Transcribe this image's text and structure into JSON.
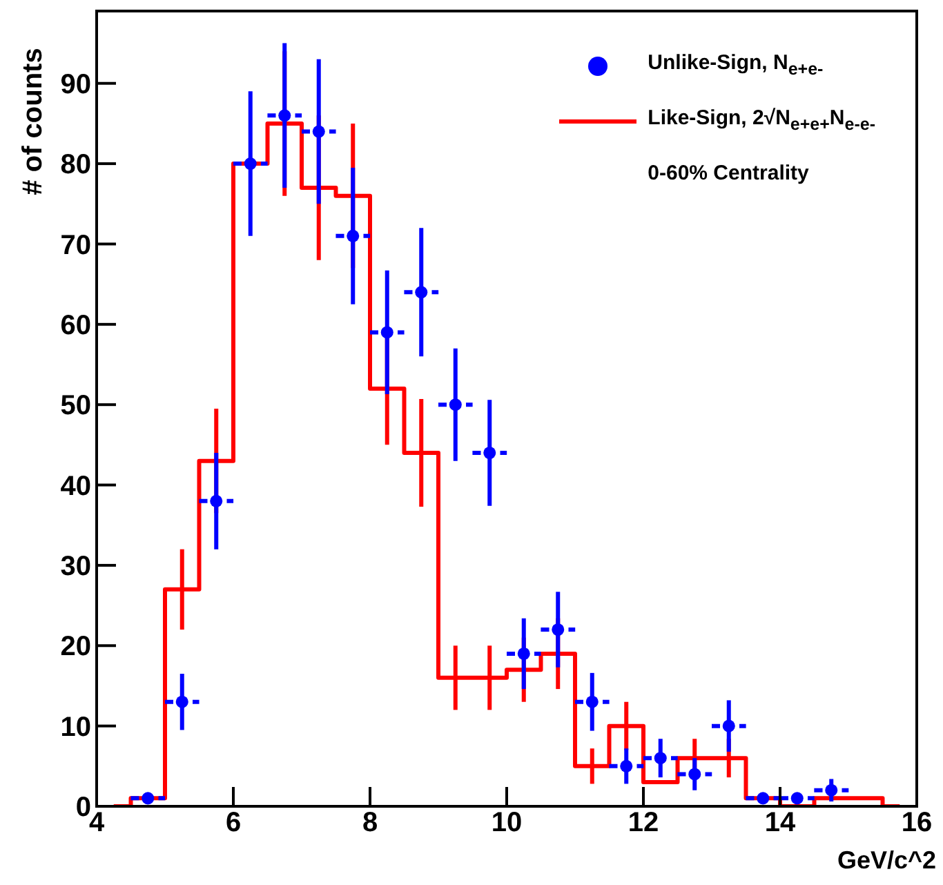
{
  "chart_data": {
    "type": "step",
    "xlabel": "GeV/c^2",
    "ylabel": "# of counts",
    "xlim": [
      4,
      16
    ],
    "xticks": [
      4,
      6,
      8,
      10,
      12,
      14,
      16
    ],
    "ylim": [
      0,
      99
    ],
    "yticks": [
      0,
      10,
      20,
      30,
      40,
      50,
      60,
      70,
      80,
      90
    ],
    "grid": false,
    "legend": "top right",
    "annotations": [
      "0-60% Centrality"
    ],
    "series": [
      {
        "name": "Unlike-Sign, N$_{e+e-}$",
        "type": "scatter",
        "marker": "circle",
        "color": "#0000ff",
        "x": [
          4.75,
          5.25,
          5.75,
          6.25,
          6.75,
          7.25,
          7.75,
          8.25,
          8.75,
          9.25,
          9.75,
          10.25,
          10.75,
          11.25,
          11.75,
          12.25,
          12.75,
          13.25,
          13.75,
          14.25,
          14.75
        ],
        "values": [
          1,
          13,
          38,
          80,
          86,
          84,
          71,
          59,
          64,
          50,
          44,
          19,
          22,
          13,
          5,
          6,
          4,
          10,
          1,
          1,
          2
        ],
        "errors": [
          null,
          3.5,
          6,
          9,
          9,
          9,
          8.5,
          7.7,
          8,
          7,
          6.6,
          4.4,
          4.7,
          3.6,
          2.2,
          2.4,
          2,
          3.2,
          null,
          null,
          1.4
        ],
        "xerrors": [
          0.25,
          0.25,
          0.25,
          0.25,
          0.25,
          0.25,
          0.25,
          0.25,
          0.25,
          0.25,
          0.25,
          0.25,
          0.25,
          0.25,
          0.25,
          0.25,
          0.25,
          0.25,
          0.25,
          0.25,
          0.25
        ]
      },
      {
        "name": "Like-Sign, 2√N$_{e+e+}$N$_{e-e-}$",
        "color": "#ff0000",
        "x": [
          4.25,
          4.75,
          5.25,
          5.75,
          6.25,
          6.75,
          7.25,
          7.75,
          8.25,
          8.75,
          9.25,
          9.75,
          10.25,
          10.75,
          11.25,
          11.75,
          12.25,
          12.75,
          13.25,
          13.75,
          14.25,
          14.75,
          15.25,
          15.75
        ],
        "values": [
          0,
          1,
          27,
          43,
          80,
          85,
          77,
          76,
          52,
          44,
          16,
          16,
          17,
          19,
          5,
          10,
          3,
          6,
          6,
          1,
          0,
          1,
          1,
          0
        ],
        "errors": [
          null,
          null,
          5,
          6.5,
          null,
          9,
          9,
          9,
          7,
          6.7,
          4,
          4,
          4,
          4.4,
          2.2,
          3,
          null,
          2.4,
          2.4,
          null,
          null,
          null,
          null,
          null
        ]
      }
    ]
  }
}
